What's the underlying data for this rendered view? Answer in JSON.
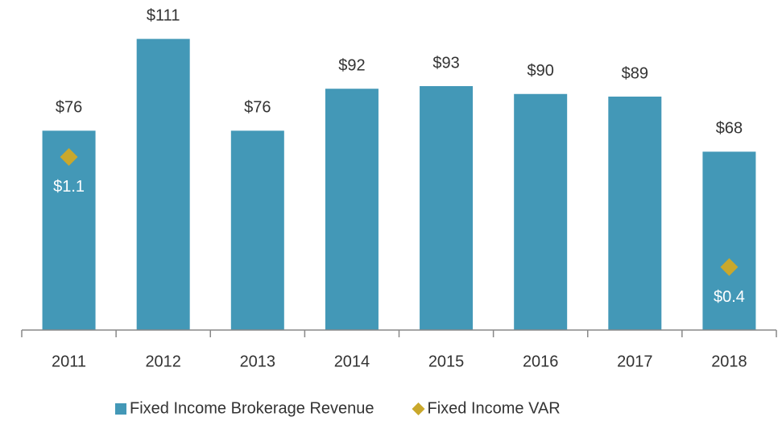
{
  "chart_data": {
    "type": "bar",
    "categories": [
      "2011",
      "2012",
      "2013",
      "2014",
      "2015",
      "2016",
      "2017",
      "2018"
    ],
    "series": [
      {
        "name": "Fixed Income Brokerage Revenue",
        "color": "#4398b7",
        "type": "bar",
        "values": [
          76,
          111,
          76,
          92,
          93,
          90,
          89,
          68
        ],
        "value_labels": [
          "$76",
          "$111",
          "$76",
          "$92",
          "$93",
          "$90",
          "$89",
          "$68"
        ]
      },
      {
        "name": "Fixed Income VAR",
        "color": "#c9a82c",
        "type": "scatter",
        "axis": "y2",
        "values": [
          1.1,
          null,
          null,
          null,
          null,
          null,
          null,
          0.4
        ],
        "value_labels": [
          "$1.1",
          null,
          null,
          null,
          null,
          null,
          null,
          "$0.4"
        ]
      }
    ],
    "ylim": [
      0,
      120
    ],
    "y2lim": [
      0,
      2
    ],
    "legend": "bottom"
  }
}
